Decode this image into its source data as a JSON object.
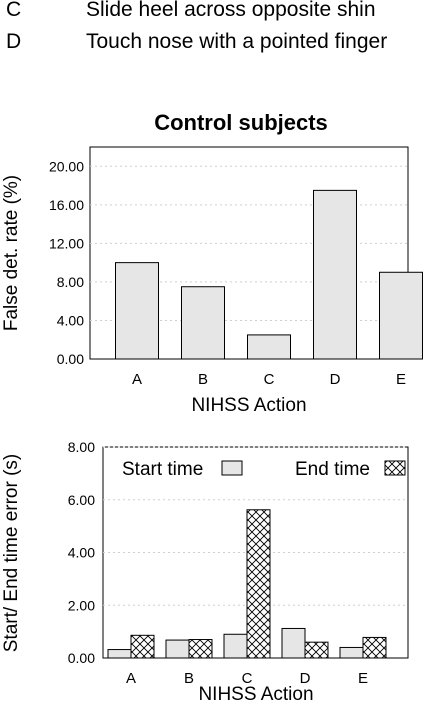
{
  "action_legend": [
    {
      "letter": "C",
      "description": "Slide heel across opposite shin"
    },
    {
      "letter": "D",
      "description": "Touch nose with a pointed finger"
    }
  ],
  "chart_data": [
    {
      "type": "bar",
      "title": "Control subjects",
      "xlabel": "NIHSS Action",
      "ylabel": "False det. rate (%)",
      "categories": [
        "A",
        "B",
        "C",
        "D",
        "E"
      ],
      "values": [
        10.0,
        7.5,
        2.5,
        17.5,
        9.0
      ],
      "ylim": [
        0,
        22
      ],
      "yticks": [
        "0.00",
        "4.00",
        "8.00",
        "12.00",
        "16.00",
        "20.00"
      ],
      "grid": true,
      "bar_color": "#e6e6e6"
    },
    {
      "type": "bar",
      "title": "",
      "xlabel": "NIHSS Action",
      "ylabel": "Start/ End time error (s)",
      "categories": [
        "A",
        "B",
        "C",
        "D",
        "E"
      ],
      "series": [
        {
          "name": "Start time",
          "values": [
            0.32,
            0.68,
            0.9,
            1.12,
            0.4
          ],
          "pattern": "solid"
        },
        {
          "name": "End time",
          "values": [
            0.86,
            0.7,
            5.62,
            0.6,
            0.78
          ],
          "pattern": "crosshatch"
        }
      ],
      "ylim": [
        0,
        8
      ],
      "yticks": [
        "0.00",
        "2.00",
        "4.00",
        "6.00",
        "8.00"
      ],
      "legend": "top",
      "grid": true,
      "bar_color": "#e6e6e6"
    }
  ]
}
